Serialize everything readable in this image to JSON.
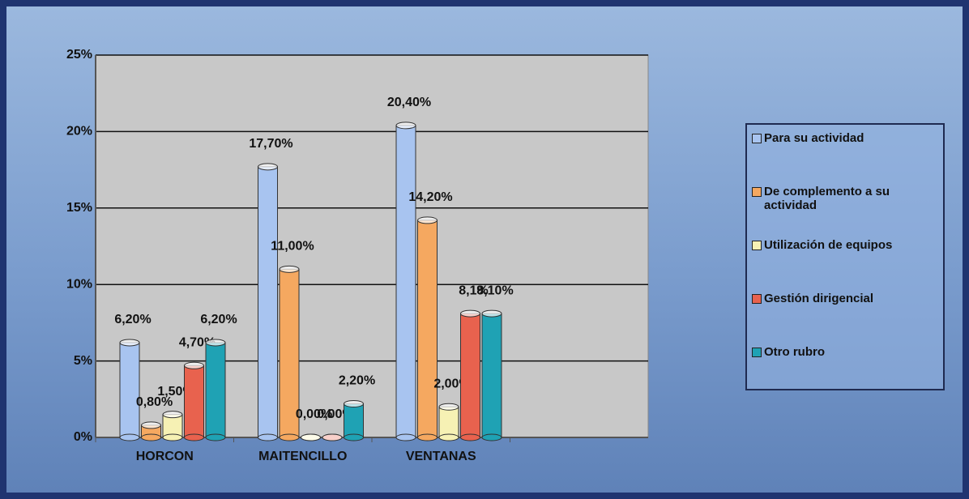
{
  "chart_data": {
    "type": "bar",
    "categories": [
      "HORCON",
      "MAITENCILLO",
      "VENTANAS",
      null
    ],
    "series": [
      {
        "name": "Para su actividad",
        "color": "#a8c4f0",
        "values": [
          6.2,
          17.7,
          20.4,
          null
        ],
        "value_labels": [
          "6,20%",
          "17,70%",
          "20,40%",
          null
        ]
      },
      {
        "name": "De complemento a su actividad",
        "color": "#f5a860",
        "values": [
          0.8,
          11.0,
          14.2,
          null
        ],
        "value_labels": [
          "0,80%",
          "11,00%",
          "14,20%",
          null
        ]
      },
      {
        "name": "Utilización de equipos",
        "color": "#f6f1b4",
        "values": [
          1.5,
          0.0,
          2.0,
          null
        ],
        "value_labels": [
          "1,50%",
          "0,00%",
          "2,00%",
          null
        ]
      },
      {
        "name": "Gestión dirigencial",
        "color": "#e8624e",
        "values": [
          4.7,
          0.0,
          8.1,
          null
        ],
        "value_labels": [
          "4,70%",
          "0,00%",
          "8,1%",
          null
        ]
      },
      {
        "name": "Otro rubro",
        "color": "#1fa2b4",
        "values": [
          6.2,
          2.2,
          8.1,
          null
        ],
        "value_labels": [
          "6,20%",
          "2,20%",
          "8,10%",
          null
        ]
      }
    ],
    "ylim": [
      0,
      25
    ],
    "yticks": [
      {
        "value": 0,
        "label": "0%"
      },
      {
        "value": 5,
        "label": "5%"
      },
      {
        "value": 10,
        "label": "10%"
      },
      {
        "value": 15,
        "label": "15%"
      },
      {
        "value": 20,
        "label": "20%"
      },
      {
        "value": 25,
        "label": "25%"
      }
    ],
    "grid": true,
    "legend": "right"
  }
}
